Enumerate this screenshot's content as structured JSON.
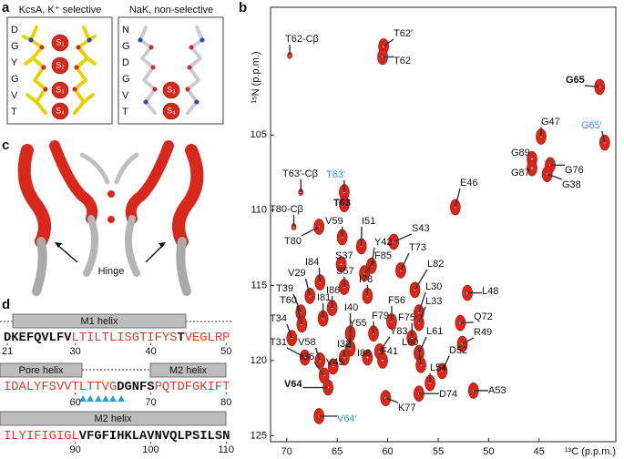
{
  "panel_a": {
    "label": "a",
    "kcsa": {
      "title": "KcsA, K⁺ selective",
      "residues": [
        "D",
        "G",
        "Y",
        "G",
        "V",
        "T"
      ],
      "sites": [
        "S₁",
        "S₂",
        "S₃",
        "S₄"
      ]
    },
    "nak": {
      "title": "NaK, non-selective",
      "residues": [
        "N",
        "G",
        "D",
        "G",
        "V",
        "T"
      ],
      "sites": [
        "S₃",
        "S₄"
      ]
    }
  },
  "panel_b": {
    "label": "b",
    "type": "scatter",
    "x_label": "¹³C (p.p.m.)",
    "y_label": "¹⁵N (p.p.m.)",
    "xlim": [
      71.6,
      37.4
    ],
    "ylim": [
      96.5,
      125.4
    ],
    "xticks": [
      70,
      65,
      60,
      55,
      50,
      45
    ],
    "yticks": [
      105,
      110,
      115,
      120,
      125
    ],
    "peak_color": "#d8281c",
    "peaks": [
      {
        "label": "T62-Cβ",
        "x": 69.7,
        "y": 99.7
      },
      {
        "label": "T62′",
        "x": 60.4,
        "y": 99.1
      },
      {
        "label": "T62",
        "x": 60.5,
        "y": 99.8
      },
      {
        "label": "G65",
        "x": 39.0,
        "y": 101.8,
        "bold": true
      },
      {
        "label": "G47",
        "x": 44.8,
        "y": 105.1
      },
      {
        "label": "G65′",
        "x": 38.5,
        "y": 105.5,
        "color": "#2a9fd6"
      },
      {
        "label": "G89",
        "x": 45.7,
        "y": 106.6
      },
      {
        "label": "G87",
        "x": 45.7,
        "y": 107.2
      },
      {
        "label": "G76",
        "x": 43.9,
        "y": 107.0
      },
      {
        "label": "G38",
        "x": 44.2,
        "y": 107.6
      },
      {
        "label": "T63′-Cβ",
        "x": 68.6,
        "y": 108.8
      },
      {
        "label": "T63′",
        "x": 64.3,
        "y": 108.8,
        "color": "#2a9fd6"
      },
      {
        "label": "T63",
        "x": 64.3,
        "y": 109.6,
        "bold": true
      },
      {
        "label": "E46",
        "x": 53.3,
        "y": 109.8
      },
      {
        "label": "T80-Cβ",
        "x": 69.3,
        "y": 111.1
      },
      {
        "label": "T80",
        "x": 66.8,
        "y": 111.1
      },
      {
        "label": "V59",
        "x": 64.5,
        "y": 111.8
      },
      {
        "label": "I51",
        "x": 62.6,
        "y": 112.4
      },
      {
        "label": "S43",
        "x": 59.4,
        "y": 112.1
      },
      {
        "label": "S37",
        "x": 64.6,
        "y": 113.6
      },
      {
        "label": "Y42",
        "x": 61.6,
        "y": 113.7
      },
      {
        "label": "T73",
        "x": 58.7,
        "y": 114.0
      },
      {
        "label": "F85",
        "x": 62.3,
        "y": 114.2
      },
      {
        "label": "I84",
        "x": 66.7,
        "y": 114.8
      },
      {
        "label": "S57",
        "x": 64.3,
        "y": 115.1
      },
      {
        "label": "L82",
        "x": 57.3,
        "y": 115.3
      },
      {
        "label": "I78",
        "x": 62.0,
        "y": 115.7
      },
      {
        "label": "V29",
        "x": 67.7,
        "y": 115.7
      },
      {
        "label": "I86",
        "x": 65.5,
        "y": 116.5
      },
      {
        "label": "L48",
        "x": 52.1,
        "y": 115.5
      },
      {
        "label": "T39",
        "x": 68.6,
        "y": 116.8
      },
      {
        "label": "I81",
        "x": 66.4,
        "y": 117.2
      },
      {
        "label": "F56",
        "x": 59.6,
        "y": 117.4
      },
      {
        "label": "L30",
        "x": 56.9,
        "y": 116.8
      },
      {
        "label": "L33",
        "x": 56.9,
        "y": 117.5
      },
      {
        "label": "T60",
        "x": 68.5,
        "y": 117.6
      },
      {
        "label": "I40",
        "x": 63.7,
        "y": 118.2
      },
      {
        "label": "F79",
        "x": 61.4,
        "y": 118.2
      },
      {
        "label": "F75",
        "x": 57.6,
        "y": 118.5
      },
      {
        "label": "T34",
        "x": 69.5,
        "y": 118.5
      },
      {
        "label": "Q72",
        "x": 52.8,
        "y": 117.5
      },
      {
        "label": "Y55",
        "x": 63.7,
        "y": 119.2
      },
      {
        "label": "Y83",
        "x": 60.8,
        "y": 119.4
      },
      {
        "label": "L61",
        "x": 56.9,
        "y": 119.5
      },
      {
        "label": "R49",
        "x": 52.6,
        "y": 118.9
      },
      {
        "label": "T31",
        "x": 68.2,
        "y": 119.8
      },
      {
        "label": "V58",
        "x": 66.7,
        "y": 120.0
      },
      {
        "label": "I32",
        "x": 64.3,
        "y": 119.8
      },
      {
        "label": "I88",
        "x": 62.0,
        "y": 119.8
      },
      {
        "label": "F41",
        "x": 60.5,
        "y": 120.0
      },
      {
        "label": "L90",
        "x": 56.7,
        "y": 120.3
      },
      {
        "label": "D52",
        "x": 54.6,
        "y": 120.7
      },
      {
        "label": "I36",
        "x": 66.3,
        "y": 121.0
      },
      {
        "label": "V45",
        "x": 65.4,
        "y": 120.4
      },
      {
        "label": "A53",
        "x": 51.5,
        "y": 122.0
      },
      {
        "label": "L54",
        "x": 55.8,
        "y": 121.5
      },
      {
        "label": "V64",
        "x": 65.9,
        "y": 121.8,
        "bold": true
      },
      {
        "label": "K77",
        "x": 60.2,
        "y": 122.5
      },
      {
        "label": "D74",
        "x": 56.9,
        "y": 122.2
      },
      {
        "label": "V64′",
        "x": 66.8,
        "y": 123.7,
        "color": "#2a9fd6"
      }
    ]
  },
  "panel_c": {
    "label": "c",
    "annotation": "Hinge"
  },
  "panel_d": {
    "label": "d",
    "rows": [
      {
        "helices": [
          "M1 helix"
        ],
        "segments": [
          {
            "text": "DKEFQVLFV",
            "color": "#111"
          },
          {
            "text": "LTILTLISGTIFYS",
            "color": "#e03a2a"
          },
          {
            "text": "T",
            "color": "#111"
          },
          {
            "text": "VEGLRP",
            "color": "#e03a2a"
          }
        ],
        "numbers": [
          21,
          30,
          40,
          50
        ]
      },
      {
        "helices": [
          "Pore helix",
          "M2 helix"
        ],
        "segments": [
          {
            "text": "IDALYFSVVTLTTVG",
            "color": "#e03a2a"
          },
          {
            "text": "DGNFS",
            "color": "#111"
          },
          {
            "text": "PQTDFGKIFT",
            "color": "#e03a2a"
          }
        ],
        "numbers": [
          60,
          70,
          80
        ]
      },
      {
        "helices": [
          "M2 helix"
        ],
        "segments": [
          {
            "text": "ILYIFIGIGL",
            "color": "#e03a2a"
          },
          {
            "text": "VFGFIHKLAVNVQLPSILSN",
            "color": "#111"
          }
        ],
        "numbers": [
          90,
          100,
          110
        ]
      }
    ]
  }
}
